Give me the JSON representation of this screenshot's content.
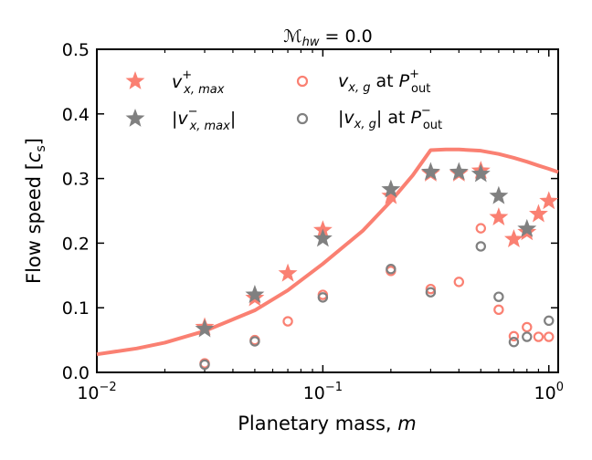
{
  "chart_data": {
    "type": "scatter",
    "title_italic": "ℳ",
    "title_sub": "hw",
    "title_rest": " = 0.0",
    "xlabel_text": "Planetary mass, ",
    "xlabel_var": "m",
    "ylabel_text": "Flow speed [",
    "ylabel_var": "c",
    "ylabel_sub": "s",
    "ylabel_close": "]",
    "xscale": "log",
    "xlim": [
      0.01,
      1.1
    ],
    "ylim": [
      0.0,
      0.5
    ],
    "xticks": [
      {
        "value": 0.01,
        "base": "10",
        "exp": "−2"
      },
      {
        "value": 0.1,
        "base": "10",
        "exp": "−1"
      },
      {
        "value": 1,
        "base": "10",
        "exp": "0"
      }
    ],
    "yticks": [
      {
        "value": 0.0,
        "label": "0.0"
      },
      {
        "value": 0.1,
        "label": "0.1"
      },
      {
        "value": 0.2,
        "label": "0.2"
      },
      {
        "value": 0.3,
        "label": "0.3"
      },
      {
        "value": 0.4,
        "label": "0.4"
      },
      {
        "value": 0.5,
        "label": "0.5"
      }
    ],
    "colors": {
      "salmon": "#fa8072",
      "gray": "#808080",
      "axis": "#000000"
    },
    "legend_position": "top",
    "series": [
      {
        "name": "v+x,max",
        "legend_label": "v",
        "legend_sup": "+",
        "legend_sub": "x, max",
        "legend_abs": false,
        "marker": "star",
        "color": "#fa8072",
        "x": [
          0.03,
          0.05,
          0.07,
          0.1,
          0.2,
          0.3,
          0.4,
          0.5,
          0.6,
          0.7,
          0.8,
          0.9,
          1.0
        ],
        "y": [
          0.07,
          0.115,
          0.153,
          0.22,
          0.273,
          0.308,
          0.308,
          0.312,
          0.24,
          0.206,
          0.217,
          0.245,
          0.265
        ]
      },
      {
        "name": "|v-x,max|",
        "legend_label": "v",
        "legend_sup": "−",
        "legend_sub": "x, max",
        "legend_abs": true,
        "marker": "star",
        "color": "#808080",
        "x": [
          0.03,
          0.05,
          0.1,
          0.2,
          0.3,
          0.4,
          0.5,
          0.6,
          0.8
        ],
        "y": [
          0.067,
          0.12,
          0.207,
          0.283,
          0.31,
          0.31,
          0.307,
          0.273,
          0.222
        ]
      },
      {
        "name": "vx,g at P+out",
        "legend_label": "v",
        "legend_sub": "x, g",
        "legend_at": " at ",
        "legend_p": "P",
        "legend_p_sup": "+",
        "legend_p_sub": "out",
        "legend_abs": false,
        "marker": "circle",
        "color": "#fa8072",
        "x": [
          0.03,
          0.05,
          0.07,
          0.1,
          0.2,
          0.3,
          0.4,
          0.5,
          0.6,
          0.7,
          0.8,
          0.9,
          1.0
        ],
        "y": [
          0.014,
          0.05,
          0.079,
          0.12,
          0.157,
          0.129,
          0.14,
          0.223,
          0.097,
          0.056,
          0.07,
          0.055,
          0.055
        ]
      },
      {
        "name": "|vx,g| at P-out",
        "legend_label": "v",
        "legend_sub": "x, g",
        "legend_at": " at ",
        "legend_p": "P",
        "legend_p_sup": "−",
        "legend_p_sub": "out",
        "legend_abs": true,
        "marker": "circle",
        "color": "#808080",
        "x": [
          0.03,
          0.05,
          0.1,
          0.2,
          0.3,
          0.5,
          0.6,
          0.7,
          0.8,
          1.0
        ],
        "y": [
          0.012,
          0.048,
          0.116,
          0.16,
          0.124,
          0.195,
          0.117,
          0.047,
          0.055,
          0.08
        ]
      }
    ],
    "model_curve": {
      "name": "model",
      "color": "#fa8072",
      "x": [
        0.01,
        0.015,
        0.02,
        0.03,
        0.05,
        0.07,
        0.1,
        0.15,
        0.2,
        0.25,
        0.3,
        0.35,
        0.4,
        0.5,
        0.6,
        0.7,
        0.8,
        0.9,
        1.0,
        1.1
      ],
      "y": [
        0.028,
        0.037,
        0.046,
        0.064,
        0.096,
        0.127,
        0.168,
        0.219,
        0.265,
        0.305,
        0.344,
        0.345,
        0.345,
        0.343,
        0.338,
        0.332,
        0.326,
        0.32,
        0.315,
        0.31
      ]
    }
  }
}
